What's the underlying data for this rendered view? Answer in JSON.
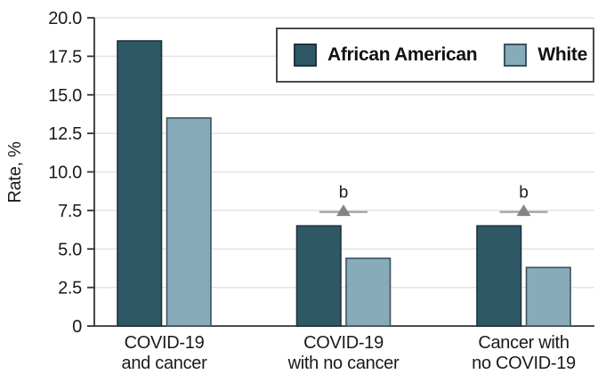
{
  "chart_data": {
    "type": "bar",
    "title": "",
    "ylabel": "Rate, %",
    "ylim": [
      0,
      20
    ],
    "yticks": [
      0,
      2.5,
      5,
      7.5,
      10,
      12.5,
      15,
      17.5,
      20
    ],
    "ytick_labels": [
      "0",
      "2.5",
      "5.0",
      "7.5",
      "10.0",
      "12.5",
      "15.0",
      "17.5",
      "20.0"
    ],
    "categories": [
      [
        "COVID-19",
        "and cancer"
      ],
      [
        "COVID-19",
        "with no cancer"
      ],
      [
        "Cancer with",
        "no COVID-19"
      ]
    ],
    "grid": "horizontal",
    "legend_position": "top-right",
    "series": [
      {
        "name": "African American",
        "color": "#2e5866",
        "border": "#1f333d",
        "values": [
          18.5,
          6.5,
          6.5
        ]
      },
      {
        "name": "White",
        "color": "#87abb8",
        "border": "#3c535e",
        "values": [
          13.5,
          4.4,
          3.8
        ]
      }
    ],
    "annotations": [
      {
        "label": "b",
        "category_index": 1,
        "y": 7.4,
        "marker": "triangle-up"
      },
      {
        "label": "b",
        "category_index": 2,
        "y": 7.4,
        "marker": "triangle-up"
      }
    ],
    "colors": {
      "axis": "#333333",
      "grid": "#e3e3e3",
      "text": "#1a1a1a",
      "marker_line": "#9a9a9a",
      "marker_fill": "#848484",
      "legend_border": "#4a4a4a",
      "background": "#ffffff"
    }
  }
}
